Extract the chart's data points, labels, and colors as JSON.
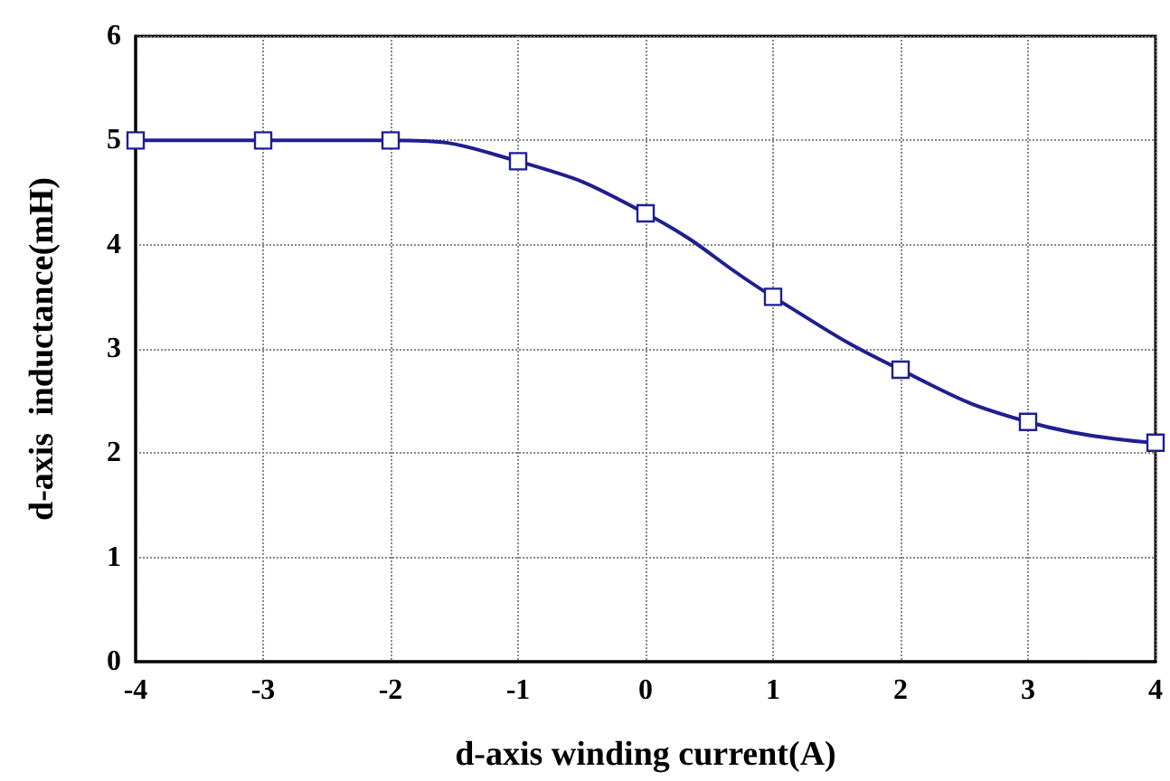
{
  "chart_data": {
    "type": "line",
    "xlabel": "d-axis winding current(A)",
    "ylabel": "d-axis  inductance(mH)",
    "x": [
      -4,
      -3,
      -2,
      -1,
      0,
      1,
      2,
      3,
      4
    ],
    "series": [
      {
        "color": "#1f1f8f",
        "values": [
          5.0,
          5.0,
          5.0,
          4.8,
          4.3,
          3.5,
          2.8,
          2.3,
          2.1
        ]
      }
    ],
    "xlim": [
      -4,
      4
    ],
    "xticks": [
      -4,
      -3,
      -2,
      -1,
      0,
      1,
      2,
      3,
      4
    ],
    "ylim": [
      0,
      6
    ],
    "yticks": [
      0,
      1,
      2,
      3,
      4,
      5,
      6
    ],
    "grid": true,
    "marker": "square",
    "line_style": "solid"
  }
}
